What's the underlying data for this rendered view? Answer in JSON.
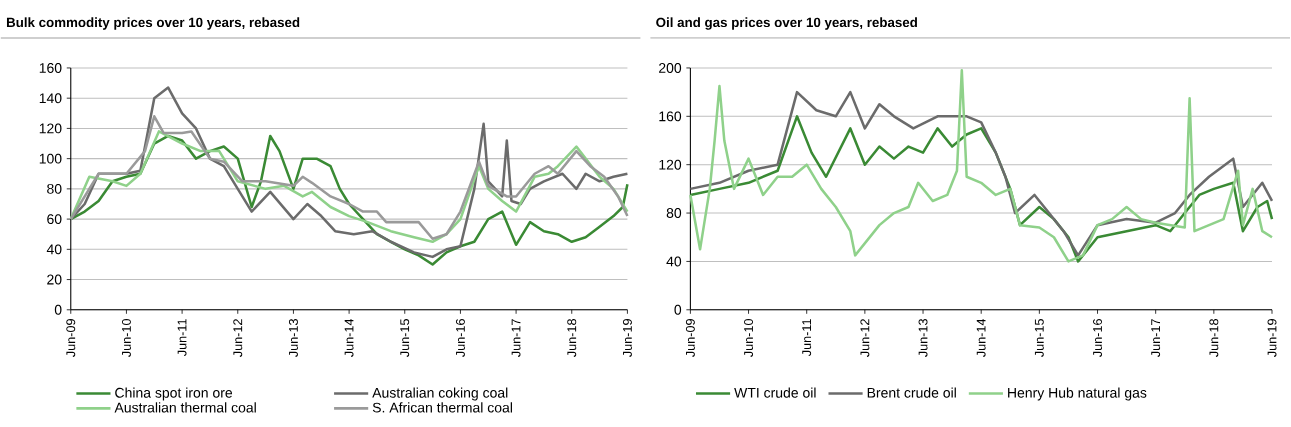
{
  "chart_data": [
    {
      "type": "line",
      "title": "Bulk commodity prices over 10 years, rebased",
      "xlim": [
        "2009-06",
        "2019-06"
      ],
      "xticks": [
        {
          "value": "2009-06",
          "label": "Jun-09"
        },
        {
          "value": "2010-06",
          "label": "Jun-10"
        },
        {
          "value": "2011-06",
          "label": "Jun-11"
        },
        {
          "value": "2012-06",
          "label": "Jun-12"
        },
        {
          "value": "2013-06",
          "label": "Jun-13"
        },
        {
          "value": "2014-06",
          "label": "Jun-14"
        },
        {
          "value": "2015-06",
          "label": "Jun-15"
        },
        {
          "value": "2016-06",
          "label": "Jun-16"
        },
        {
          "value": "2017-06",
          "label": "Jun-17"
        },
        {
          "value": "2018-06",
          "label": "Jun-18"
        },
        {
          "value": "2019-06",
          "label": "Jun-19"
        }
      ],
      "ylim": [
        0,
        160
      ],
      "yticks": [
        0,
        20,
        40,
        60,
        80,
        100,
        120,
        140,
        160
      ],
      "grid": "y",
      "legend": "bottom",
      "series": [
        {
          "name": "China spot iron ore",
          "color": "#3a8a34",
          "x": [
            "2009-06",
            "2009-09",
            "2009-12",
            "2010-03",
            "2010-06",
            "2010-09",
            "2010-12",
            "2011-03",
            "2011-06",
            "2011-09",
            "2011-12",
            "2012-03",
            "2012-06",
            "2012-09",
            "2012-11",
            "2013-01",
            "2013-03",
            "2013-06",
            "2013-08",
            "2013-11",
            "2014-02",
            "2014-04",
            "2014-06",
            "2014-09",
            "2014-12",
            "2015-03",
            "2015-06",
            "2015-09",
            "2015-12",
            "2016-03",
            "2016-06",
            "2016-09",
            "2016-12",
            "2017-03",
            "2017-06",
            "2017-09",
            "2017-12",
            "2018-03",
            "2018-06",
            "2018-09",
            "2018-12",
            "2019-03",
            "2019-05",
            "2019-06"
          ],
          "values": [
            60,
            65,
            72,
            85,
            88,
            90,
            110,
            115,
            112,
            100,
            105,
            108,
            100,
            68,
            85,
            115,
            105,
            80,
            100,
            100,
            95,
            80,
            70,
            60,
            50,
            45,
            40,
            36,
            30,
            38,
            42,
            45,
            60,
            65,
            43,
            58,
            52,
            50,
            45,
            48,
            55,
            62,
            68,
            83
          ]
        },
        {
          "name": "Australian coking coal",
          "color": "#6b6b6b",
          "x": [
            "2009-06",
            "2009-09",
            "2009-12",
            "2010-03",
            "2010-06",
            "2010-09",
            "2010-12",
            "2011-03",
            "2011-06",
            "2011-09",
            "2011-12",
            "2012-03",
            "2012-06",
            "2012-09",
            "2013-01",
            "2013-06",
            "2013-09",
            "2013-12",
            "2014-03",
            "2014-07",
            "2014-11",
            "2015-03",
            "2015-08",
            "2015-12",
            "2016-03",
            "2016-06",
            "2016-09",
            "2016-11",
            "2016-12",
            "2017-03",
            "2017-04",
            "2017-05",
            "2017-07",
            "2017-09",
            "2017-12",
            "2018-04",
            "2018-07",
            "2018-09",
            "2018-12",
            "2019-03",
            "2019-06"
          ],
          "values": [
            60,
            70,
            90,
            90,
            90,
            92,
            140,
            147,
            130,
            120,
            100,
            95,
            80,
            65,
            78,
            60,
            70,
            62,
            52,
            50,
            52,
            45,
            38,
            35,
            40,
            42,
            80,
            123,
            85,
            75,
            112,
            72,
            70,
            80,
            85,
            90,
            80,
            90,
            85,
            88,
            90
          ]
        },
        {
          "name": "Australian thermal coal",
          "color": "#8fd18a",
          "x": [
            "2009-06",
            "2009-10",
            "2010-03",
            "2010-06",
            "2010-09",
            "2011-01",
            "2011-06",
            "2011-10",
            "2012-02",
            "2012-06",
            "2012-12",
            "2013-04",
            "2013-08",
            "2013-10",
            "2014-02",
            "2014-06",
            "2014-10",
            "2015-03",
            "2015-08",
            "2015-12",
            "2016-03",
            "2016-06",
            "2016-10",
            "2016-12",
            "2017-03",
            "2017-06",
            "2017-10",
            "2018-01",
            "2018-03",
            "2018-07",
            "2018-09",
            "2018-12",
            "2019-03",
            "2019-06"
          ],
          "values": [
            60,
            88,
            85,
            82,
            90,
            118,
            110,
            105,
            105,
            85,
            80,
            82,
            75,
            78,
            68,
            62,
            58,
            52,
            48,
            45,
            50,
            60,
            95,
            80,
            72,
            65,
            88,
            90,
            95,
            108,
            100,
            88,
            80,
            65
          ]
        },
        {
          "name": "S. African thermal coal",
          "color": "#9a9a9a",
          "x": [
            "2009-06",
            "2009-12",
            "2010-06",
            "2010-10",
            "2010-12",
            "2011-02",
            "2011-06",
            "2011-08",
            "2011-12",
            "2012-03",
            "2012-07",
            "2012-12",
            "2013-06",
            "2013-08",
            "2013-10",
            "2014-02",
            "2014-06",
            "2014-09",
            "2014-12",
            "2015-02",
            "2015-09",
            "2015-12",
            "2016-03",
            "2016-06",
            "2016-10",
            "2016-12",
            "2017-04",
            "2017-06",
            "2017-10",
            "2018-01",
            "2018-03",
            "2018-07",
            "2018-10",
            "2019-01",
            "2019-04",
            "2019-06"
          ],
          "values": [
            60,
            90,
            90,
            105,
            128,
            117,
            117,
            118,
            100,
            98,
            85,
            85,
            82,
            88,
            84,
            75,
            70,
            65,
            65,
            58,
            58,
            47,
            50,
            65,
            98,
            82,
            75,
            75,
            90,
            95,
            90,
            105,
            95,
            88,
            75,
            62
          ]
        }
      ]
    },
    {
      "type": "line",
      "title": "Oil and gas prices over 10 years, rebased",
      "xlim": [
        "2009-06",
        "2019-06"
      ],
      "xticks": [
        {
          "value": "2009-06",
          "label": "Jun-09"
        },
        {
          "value": "2010-06",
          "label": "Jun-10"
        },
        {
          "value": "2011-06",
          "label": "Jun-11"
        },
        {
          "value": "2012-06",
          "label": "Jun-12"
        },
        {
          "value": "2013-06",
          "label": "Jun-13"
        },
        {
          "value": "2014-06",
          "label": "Jun-14"
        },
        {
          "value": "2015-06",
          "label": "Jun-15"
        },
        {
          "value": "2016-06",
          "label": "Jun-16"
        },
        {
          "value": "2017-06",
          "label": "Jun-17"
        },
        {
          "value": "2018-06",
          "label": "Jun-18"
        },
        {
          "value": "2019-06",
          "label": "Jun-19"
        }
      ],
      "ylim": [
        0,
        200
      ],
      "yticks": [
        0,
        40,
        80,
        120,
        160,
        200
      ],
      "grid": "y",
      "legend": "bottom",
      "series": [
        {
          "name": "WTI crude oil",
          "color": "#3a8a34",
          "x": [
            "2009-06",
            "2009-12",
            "2010-06",
            "2010-12",
            "2011-04",
            "2011-07",
            "2011-10",
            "2012-03",
            "2012-06",
            "2012-09",
            "2012-12",
            "2013-03",
            "2013-06",
            "2013-09",
            "2013-12",
            "2014-03",
            "2014-06",
            "2014-09",
            "2014-12",
            "2015-02",
            "2015-06",
            "2015-09",
            "2015-12",
            "2016-02",
            "2016-06",
            "2016-12",
            "2017-06",
            "2017-09",
            "2017-12",
            "2018-03",
            "2018-06",
            "2018-10",
            "2018-12",
            "2019-03",
            "2019-05",
            "2019-06"
          ],
          "values": [
            95,
            100,
            105,
            115,
            160,
            130,
            110,
            150,
            120,
            135,
            125,
            135,
            130,
            150,
            135,
            145,
            150,
            130,
            100,
            70,
            85,
            75,
            60,
            40,
            60,
            65,
            70,
            65,
            80,
            95,
            100,
            105,
            65,
            85,
            90,
            75
          ]
        },
        {
          "name": "Brent crude oil",
          "color": "#6b6b6b",
          "x": [
            "2009-06",
            "2009-12",
            "2010-06",
            "2010-12",
            "2011-04",
            "2011-08",
            "2011-12",
            "2012-03",
            "2012-06",
            "2012-09",
            "2012-12",
            "2013-04",
            "2013-09",
            "2013-12",
            "2014-03",
            "2014-06",
            "2014-09",
            "2014-11",
            "2015-01",
            "2015-05",
            "2015-08",
            "2015-11",
            "2016-02",
            "2016-06",
            "2016-12",
            "2017-06",
            "2017-10",
            "2018-01",
            "2018-05",
            "2018-10",
            "2018-12",
            "2019-04",
            "2019-06"
          ],
          "values": [
            100,
            105,
            115,
            120,
            180,
            165,
            160,
            180,
            150,
            170,
            160,
            150,
            160,
            160,
            160,
            155,
            130,
            110,
            80,
            95,
            80,
            65,
            45,
            70,
            75,
            72,
            80,
            95,
            110,
            125,
            85,
            105,
            90
          ]
        },
        {
          "name": "Henry Hub natural gas",
          "color": "#8fd18a",
          "x": [
            "2009-06",
            "2009-08",
            "2009-10",
            "2009-11",
            "2009-12",
            "2010-01",
            "2010-03",
            "2010-06",
            "2010-09",
            "2010-12",
            "2011-03",
            "2011-06",
            "2011-09",
            "2011-12",
            "2012-03",
            "2012-04",
            "2012-09",
            "2012-12",
            "2013-03",
            "2013-05",
            "2013-08",
            "2013-11",
            "2014-01",
            "2014-02",
            "2014-03",
            "2014-06",
            "2014-09",
            "2014-12",
            "2015-02",
            "2015-06",
            "2015-09",
            "2015-12",
            "2016-03",
            "2016-06",
            "2016-09",
            "2016-12",
            "2017-03",
            "2017-06",
            "2017-09",
            "2017-12",
            "2018-01",
            "2018-02",
            "2018-05",
            "2018-08",
            "2018-11",
            "2018-12",
            "2019-02",
            "2019-04",
            "2019-06"
          ],
          "values": [
            95,
            50,
            100,
            140,
            185,
            140,
            100,
            125,
            95,
            110,
            110,
            120,
            100,
            85,
            65,
            45,
            70,
            80,
            85,
            105,
            90,
            95,
            115,
            198,
            110,
            105,
            95,
            100,
            70,
            68,
            60,
            40,
            45,
            70,
            75,
            85,
            75,
            72,
            70,
            68,
            175,
            65,
            70,
            75,
            115,
            70,
            100,
            65,
            60
          ]
        }
      ]
    }
  ]
}
